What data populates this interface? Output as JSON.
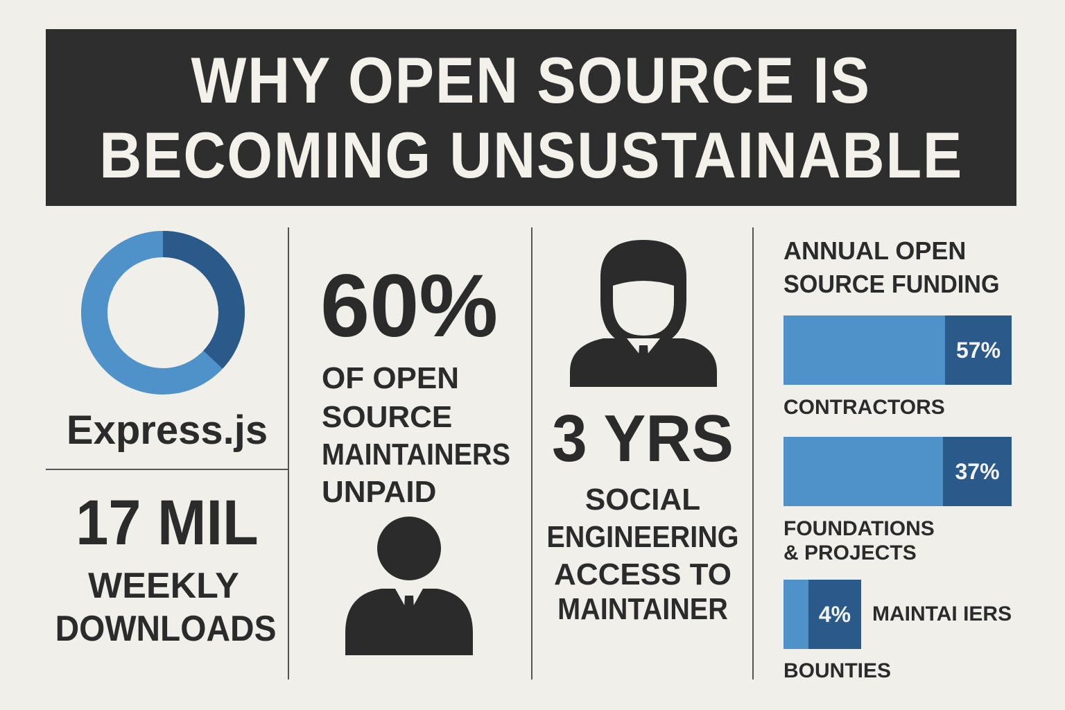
{
  "header": {
    "title_line1": "WHY OPEN SOURCE IS",
    "title_line2": "BECOMING UNSUSTAINABLE"
  },
  "col1": {
    "donut_label": "Express.js",
    "donut_share": 0.37,
    "stat_value": "17 MIL",
    "stat_line1": "WEEKLY",
    "stat_line2": "DOWNLOADS"
  },
  "col2": {
    "stat_value": "60%",
    "desc_line1": "OF OPEN",
    "desc_line2": "SOURCE",
    "desc_line3": "MAINTAINERS",
    "desc_line4": "UNPAID",
    "icon": "person-icon"
  },
  "col3": {
    "icon": "person-icon",
    "stat_value": "3 YRS",
    "desc_line1": "SOCIAL",
    "desc_line2": "ENGINEERING",
    "desc_line3": "ACCESS TO",
    "desc_line4": "MAINTAINER"
  },
  "col4": {
    "title_line1": "ANNUAL OPEN",
    "title_line2": "SOURCE FUNDING",
    "bars": [
      {
        "value": "57%",
        "label_line1": "CONTRACTORS",
        "label_line2": ""
      },
      {
        "value": "37%",
        "label_line1": "FOUNDATIONS",
        "label_line2": "& PROJECTS"
      },
      {
        "value": "4%",
        "side_label": "MAINTAI IERS",
        "label_line1": "BOUNTIES",
        "label_line2": ""
      }
    ]
  },
  "colors": {
    "banner_bg": "#2e2e2e",
    "accent_light": "#4e92c9",
    "accent_dark": "#2a5a8a",
    "text": "#2b2b2b",
    "background": "#f1efea"
  }
}
